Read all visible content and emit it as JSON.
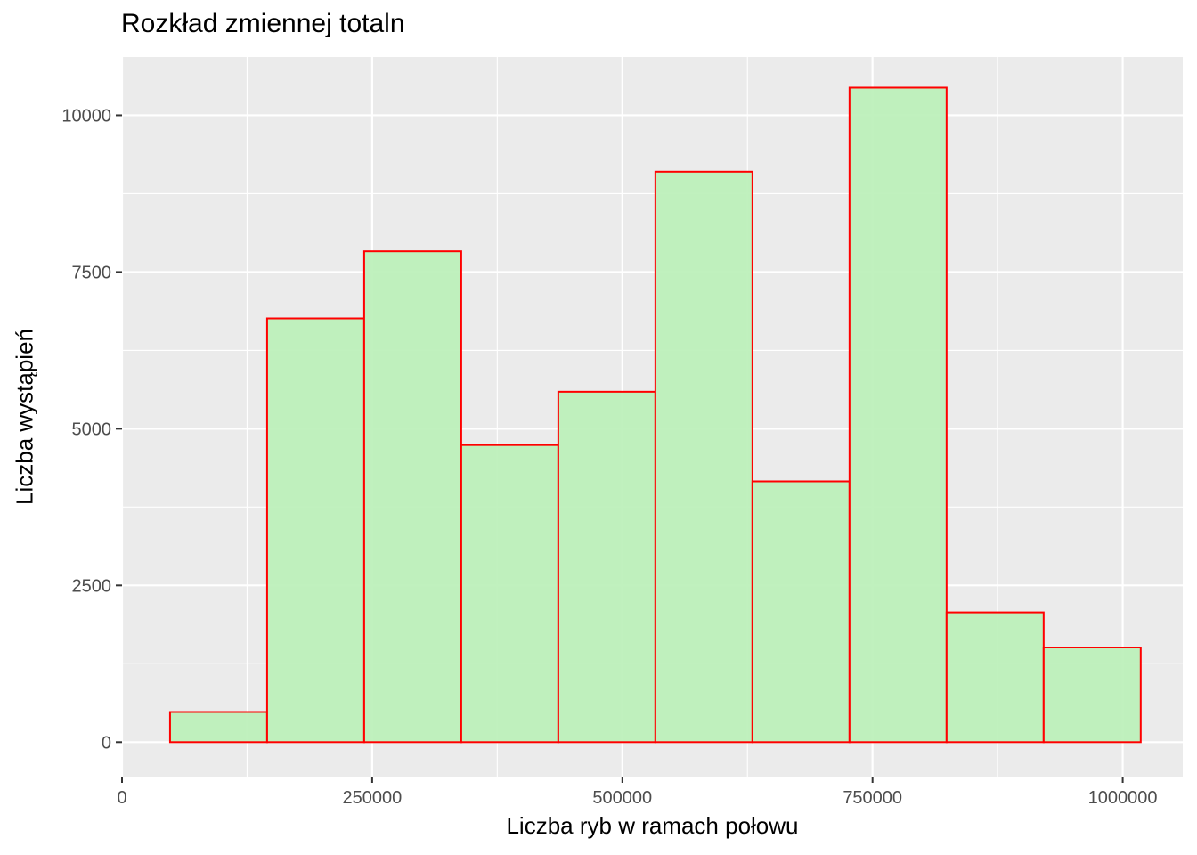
{
  "chart_data": {
    "type": "bar",
    "title": "Rozkład zmiennej totaln",
    "xlabel": "Liczba ryb w ramach połowu",
    "ylabel": "Liczba wystąpień",
    "bins": [
      {
        "x0": 48000,
        "x1": 145000,
        "count": 480
      },
      {
        "x0": 145000,
        "x1": 242000,
        "count": 6760
      },
      {
        "x0": 242000,
        "x1": 339000,
        "count": 7830
      },
      {
        "x0": 339000,
        "x1": 436000,
        "count": 4740
      },
      {
        "x0": 436000,
        "x1": 533000,
        "count": 5590
      },
      {
        "x0": 533000,
        "x1": 630000,
        "count": 9100
      },
      {
        "x0": 630000,
        "x1": 727000,
        "count": 4160
      },
      {
        "x0": 727000,
        "x1": 824000,
        "count": 10440
      },
      {
        "x0": 824000,
        "x1": 921000,
        "count": 2070
      },
      {
        "x0": 921000,
        "x1": 1018000,
        "count": 1510
      }
    ],
    "xlim": [
      0,
      1060000
    ],
    "ylim": [
      -550,
      10930
    ],
    "x_ticks": [
      0,
      250000,
      500000,
      750000,
      1000000
    ],
    "x_tick_labels": [
      "0",
      "250000",
      "500000",
      "750000",
      "1000000"
    ],
    "y_ticks": [
      0,
      2500,
      5000,
      7500,
      10000
    ],
    "y_tick_labels": [
      "0",
      "2500",
      "5000",
      "7500",
      "10000"
    ],
    "grid": true,
    "colors": {
      "fill": "#bdf0bb",
      "outline": "#ff0000",
      "panel": "#ebebeb",
      "grid": "#ffffff",
      "tick_text": "#4d4d4d"
    }
  }
}
